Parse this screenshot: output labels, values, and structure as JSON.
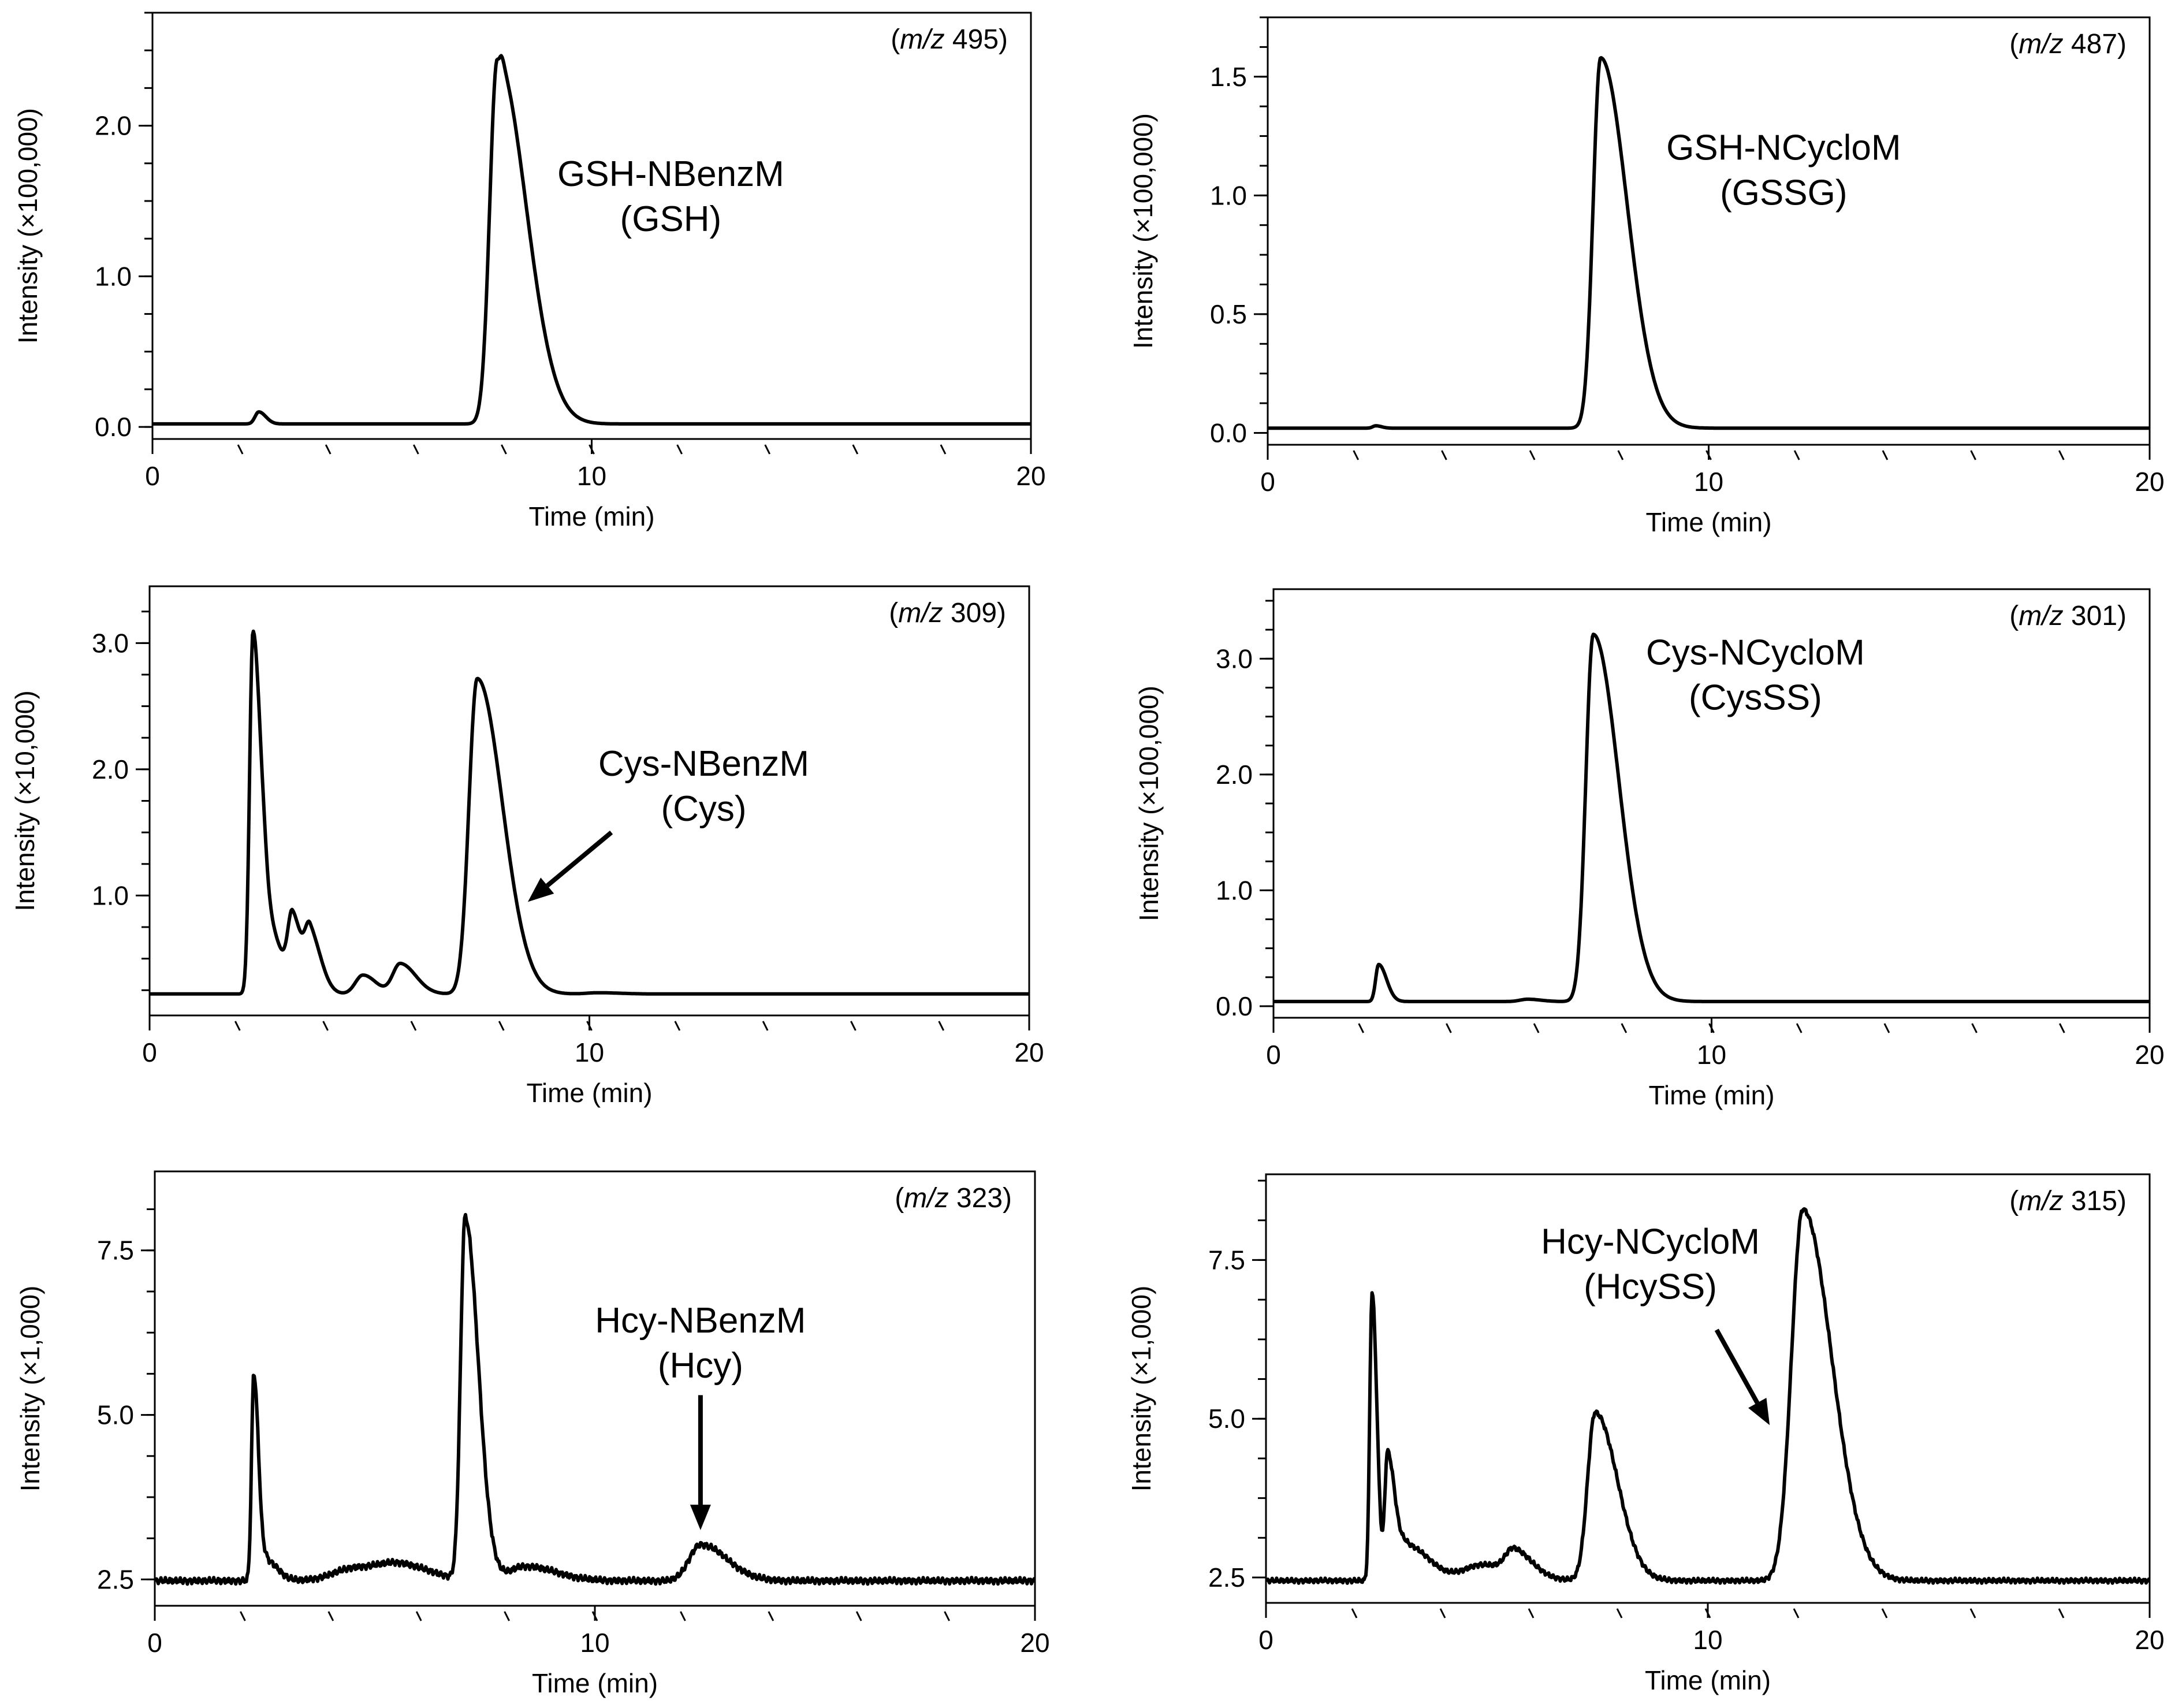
{
  "chart_data": [
    {
      "type": "line",
      "mz_label": {
        "prefix": "(",
        "italic": "m/z",
        "value": "495",
        "suffix": ")"
      },
      "ylabel": "Intensity (×100,000)",
      "xlabel": "Time  (min)",
      "xlim": [
        0,
        20
      ],
      "ylim": [
        -0.08,
        2.75
      ],
      "xticks": [
        "0",
        "10",
        "20"
      ],
      "yticks": [
        {
          "v": 0.0,
          "label": "0.0"
        },
        {
          "v": 1.0,
          "label": "1.0"
        },
        {
          "v": 2.0,
          "label": "2.0"
        }
      ],
      "annotation": {
        "line1": "GSH-NBenzM",
        "line2": "(GSH)",
        "x": 11.8,
        "y": 1.6
      },
      "baseline": 0.02,
      "peaks": [
        {
          "t": 2.42,
          "h": 0.08,
          "w": 0.1,
          "tail": 0.06
        },
        {
          "t": 7.85,
          "h": 2.42,
          "w": 0.2,
          "tail": 0.45
        },
        {
          "t": 7.95,
          "h": 0.05,
          "w": 0.04,
          "tail": 0.02
        }
      ]
    },
    {
      "type": "line",
      "mz_label": {
        "prefix": "(",
        "italic": "m/z",
        "value": "487",
        "suffix": ")"
      },
      "ylabel": "Intensity (×100,000)",
      "xlabel": "Time  (min)",
      "xlim": [
        0,
        20
      ],
      "ylim": [
        -0.05,
        1.75
      ],
      "xticks": [
        "0",
        "10",
        "20"
      ],
      "yticks": [
        {
          "v": 0.0,
          "label": "0.0"
        },
        {
          "v": 0.5,
          "label": "0.5"
        },
        {
          "v": 1.0,
          "label": "1.0"
        },
        {
          "v": 1.5,
          "label": "1.5"
        }
      ],
      "annotation": {
        "line1": "GSH-NCycloM",
        "line2": "(GSSG)",
        "x": 11.7,
        "y": 1.15
      },
      "baseline": 0.02,
      "peaks": [
        {
          "t": 2.45,
          "h": 0.01,
          "w": 0.08,
          "tail": 0.05
        },
        {
          "t": 7.55,
          "h": 1.56,
          "w": 0.2,
          "tail": 0.4
        }
      ]
    },
    {
      "type": "line",
      "mz_label": {
        "prefix": "(",
        "italic": "m/z",
        "value": "309",
        "suffix": ")"
      },
      "ylabel": "Intensity (×10,000)",
      "xlabel": "Time  (min)",
      "xlim": [
        0,
        20
      ],
      "ylim": [
        0.05,
        3.45
      ],
      "xticks": [
        "0",
        "10",
        "20"
      ],
      "yticks": [
        {
          "v": 1.0,
          "label": "1.0"
        },
        {
          "v": 2.0,
          "label": "2.0"
        },
        {
          "v": 3.0,
          "label": "3.0"
        }
      ],
      "annotation": {
        "line1": "Cys-NBenzM",
        "line2": "(Cys)",
        "x": 12.6,
        "y": 1.95
      },
      "arrow": {
        "x1": 10.5,
        "y1": 1.5,
        "x2": 8.6,
        "y2": 0.95
      },
      "baseline": 0.22,
      "peaks": [
        {
          "t": 2.35,
          "h": 2.85,
          "w": 0.09,
          "tail": 0.08
        },
        {
          "t": 2.65,
          "h": 0.55,
          "w": 0.14,
          "tail": 0.2
        },
        {
          "t": 3.25,
          "h": 0.55,
          "w": 0.12,
          "tail": 0.1
        },
        {
          "t": 3.65,
          "h": 0.45,
          "w": 0.13,
          "tail": 0.12
        },
        {
          "t": 4.85,
          "h": 0.15,
          "w": 0.2,
          "tail": 0.1
        },
        {
          "t": 5.7,
          "h": 0.24,
          "w": 0.2,
          "tail": 0.15
        },
        {
          "t": 7.45,
          "h": 2.5,
          "w": 0.22,
          "tail": 0.35
        },
        {
          "t": 10.2,
          "h": 0.01,
          "w": 0.3,
          "tail": 0.2
        }
      ]
    },
    {
      "type": "line",
      "mz_label": {
        "prefix": "(",
        "italic": "m/z",
        "value": "301",
        "suffix": ")"
      },
      "ylabel": "Intensity (×100,000)",
      "xlabel": "Time  (min)",
      "xlim": [
        0,
        20
      ],
      "ylim": [
        -0.1,
        3.6
      ],
      "xticks": [
        "0",
        "10",
        "20"
      ],
      "yticks": [
        {
          "v": 0.0,
          "label": "0.0"
        },
        {
          "v": 1.0,
          "label": "1.0"
        },
        {
          "v": 2.0,
          "label": "2.0"
        },
        {
          "v": 3.0,
          "label": "3.0"
        }
      ],
      "annotation": {
        "line1": "Cys-NCycloM",
        "line2": "(CysSS)",
        "x": 11.0,
        "y": 2.95
      },
      "baseline": 0.04,
      "peaks": [
        {
          "t": 2.4,
          "h": 0.32,
          "w": 0.08,
          "tail": 0.1
        },
        {
          "t": 5.8,
          "h": 0.02,
          "w": 0.2,
          "tail": 0.1
        },
        {
          "t": 7.3,
          "h": 3.17,
          "w": 0.2,
          "tail": 0.38
        }
      ]
    },
    {
      "type": "line",
      "mz_label": {
        "prefix": "(",
        "italic": "m/z",
        "value": "323",
        "suffix": ")"
      },
      "ylabel": "Intensity (×1,000)",
      "xlabel": "Time  (min)",
      "xlim": [
        0,
        20
      ],
      "ylim": [
        2.1,
        8.7
      ],
      "xticks": [
        "0",
        "10",
        "20"
      ],
      "yticks": [
        {
          "v": 2.5,
          "label": "2.5"
        },
        {
          "v": 5.0,
          "label": "5.0"
        },
        {
          "v": 7.5,
          "label": "7.5"
        }
      ],
      "annotation": {
        "line1": "Hcy-NBenzM",
        "line2": "(Hcy)",
        "x": 12.4,
        "y": 6.25
      },
      "arrow": {
        "x1": 12.4,
        "y1": 5.3,
        "x2": 12.4,
        "y2": 3.25
      },
      "baseline": 2.48,
      "noise": 0.05,
      "peaks": [
        {
          "t": 2.25,
          "h": 3.15,
          "w": 0.06,
          "tail": 0.05
        },
        {
          "t": 2.55,
          "h": 0.3,
          "w": 0.1,
          "tail": 0.15
        },
        {
          "t": 4.6,
          "h": 0.2,
          "w": 0.6,
          "tail": 0.4
        },
        {
          "t": 5.6,
          "h": 0.15,
          "w": 0.5,
          "tail": 0.2
        },
        {
          "t": 7.05,
          "h": 5.5,
          "w": 0.12,
          "tail": 0.18
        },
        {
          "t": 8.4,
          "h": 0.22,
          "w": 0.4,
          "tail": 0.3
        },
        {
          "t": 12.4,
          "h": 0.55,
          "w": 0.3,
          "tail": 0.3
        }
      ]
    },
    {
      "type": "line",
      "mz_label": {
        "prefix": "(",
        "italic": "m/z",
        "value": "315",
        "suffix": ")"
      },
      "ylabel": "Intensity (×1,000)",
      "xlabel": "Time  (min)",
      "xlim": [
        0,
        20
      ],
      "ylim": [
        2.1,
        8.85
      ],
      "xticks": [
        "0",
        "10",
        "20"
      ],
      "yticks": [
        {
          "v": 2.5,
          "label": "2.5"
        },
        {
          "v": 5.0,
          "label": "5.0"
        },
        {
          "v": 7.5,
          "label": "7.5"
        }
      ],
      "annotation": {
        "line1": "Hcy-NCycloM",
        "line2": "(HcySS)",
        "x": 8.7,
        "y": 7.6
      },
      "arrow": {
        "x1": 10.2,
        "y1": 6.4,
        "x2": 11.4,
        "y2": 4.9
      },
      "baseline": 2.45,
      "noise": 0.04,
      "peaks": [
        {
          "t": 2.4,
          "h": 4.55,
          "w": 0.06,
          "tail": 0.05
        },
        {
          "t": 2.75,
          "h": 2.0,
          "w": 0.07,
          "tail": 0.1
        },
        {
          "t": 3.2,
          "h": 0.55,
          "w": 0.2,
          "tail": 0.3
        },
        {
          "t": 4.9,
          "h": 0.25,
          "w": 0.5,
          "tail": 0.3
        },
        {
          "t": 5.6,
          "h": 0.35,
          "w": 0.2,
          "tail": 0.2
        },
        {
          "t": 7.45,
          "h": 2.65,
          "w": 0.2,
          "tail": 0.3
        },
        {
          "t": 12.15,
          "h": 5.85,
          "w": 0.3,
          "tail": 0.35
        }
      ]
    }
  ]
}
